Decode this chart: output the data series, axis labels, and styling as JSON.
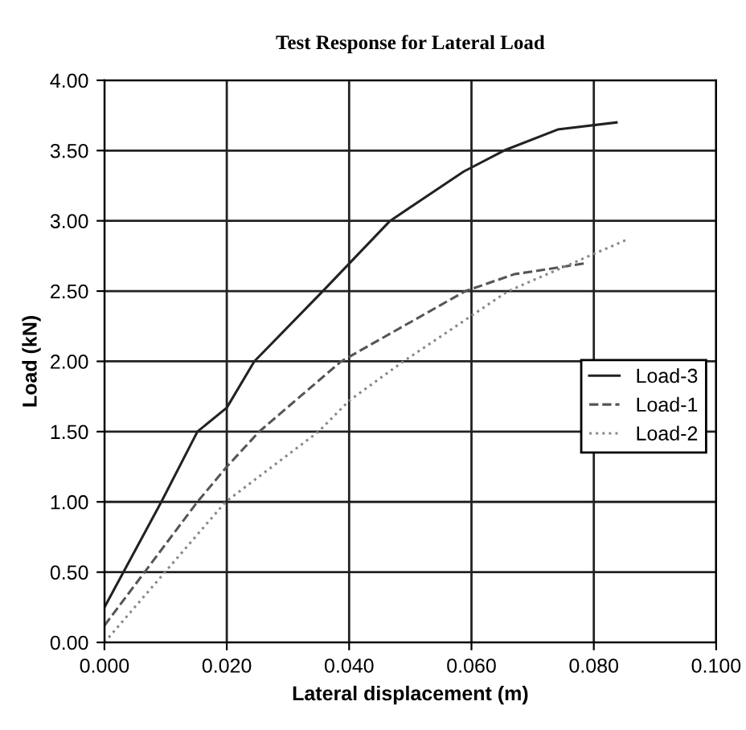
{
  "chart_data": {
    "type": "line",
    "title": "Test Response for Lateral Load",
    "xlabel": "Lateral displacement (m)",
    "ylabel": "Load (kN)",
    "xlim": [
      0,
      0.1
    ],
    "xticks": [
      {
        "value": 0,
        "label": "0.000"
      },
      {
        "value": 0.02,
        "label": "0.020"
      },
      {
        "value": 0.04,
        "label": "0.040"
      },
      {
        "value": 0.06,
        "label": "0.060"
      },
      {
        "value": 0.08,
        "label": "0.080"
      },
      {
        "value": 0.1,
        "label": "0.100"
      }
    ],
    "ylim": [
      0,
      4
    ],
    "yticks": [
      {
        "value": 0,
        "label": "0.00"
      },
      {
        "value": 0.5,
        "label": "0.50"
      },
      {
        "value": 1,
        "label": "1.00"
      },
      {
        "value": 1.5,
        "label": "1.50"
      },
      {
        "value": 2,
        "label": "2.00"
      },
      {
        "value": 2.5,
        "label": "2.50"
      },
      {
        "value": 3,
        "label": "3.00"
      },
      {
        "value": 3.5,
        "label": "3.50"
      },
      {
        "value": 4,
        "label": "4.00"
      }
    ],
    "grid": true,
    "legend": "right",
    "marker": "none",
    "series": [
      {
        "name": "Load-3",
        "color": "#222222",
        "line_style": "solid",
        "x": [
          0,
          0.0093,
          0.0152,
          0.02,
          0.0245,
          0.0357,
          0.0467,
          0.0587,
          0.0653,
          0.0741,
          0.0837
        ],
        "values": [
          0.25,
          1.0,
          1.5,
          1.67,
          2.0,
          2.5,
          3.0,
          3.35,
          3.5,
          3.65,
          3.7
        ]
      },
      {
        "name": "Load-1",
        "color": "#555555",
        "line_style": "dashed",
        "x": [
          0,
          0.0152,
          0.02,
          0.0253,
          0.0387,
          0.059,
          0.067,
          0.079
        ],
        "values": [
          0.12,
          1.0,
          1.25,
          1.5,
          2.0,
          2.5,
          2.62,
          2.7
        ]
      },
      {
        "name": "Load-2",
        "color": "#888888",
        "line_style": "dotted",
        "x": [
          0,
          0.0198,
          0.035,
          0.04,
          0.0489,
          0.066,
          0.0856
        ],
        "values": [
          0,
          1.0,
          1.5,
          1.72,
          2.0,
          2.5,
          2.87
        ]
      }
    ]
  }
}
